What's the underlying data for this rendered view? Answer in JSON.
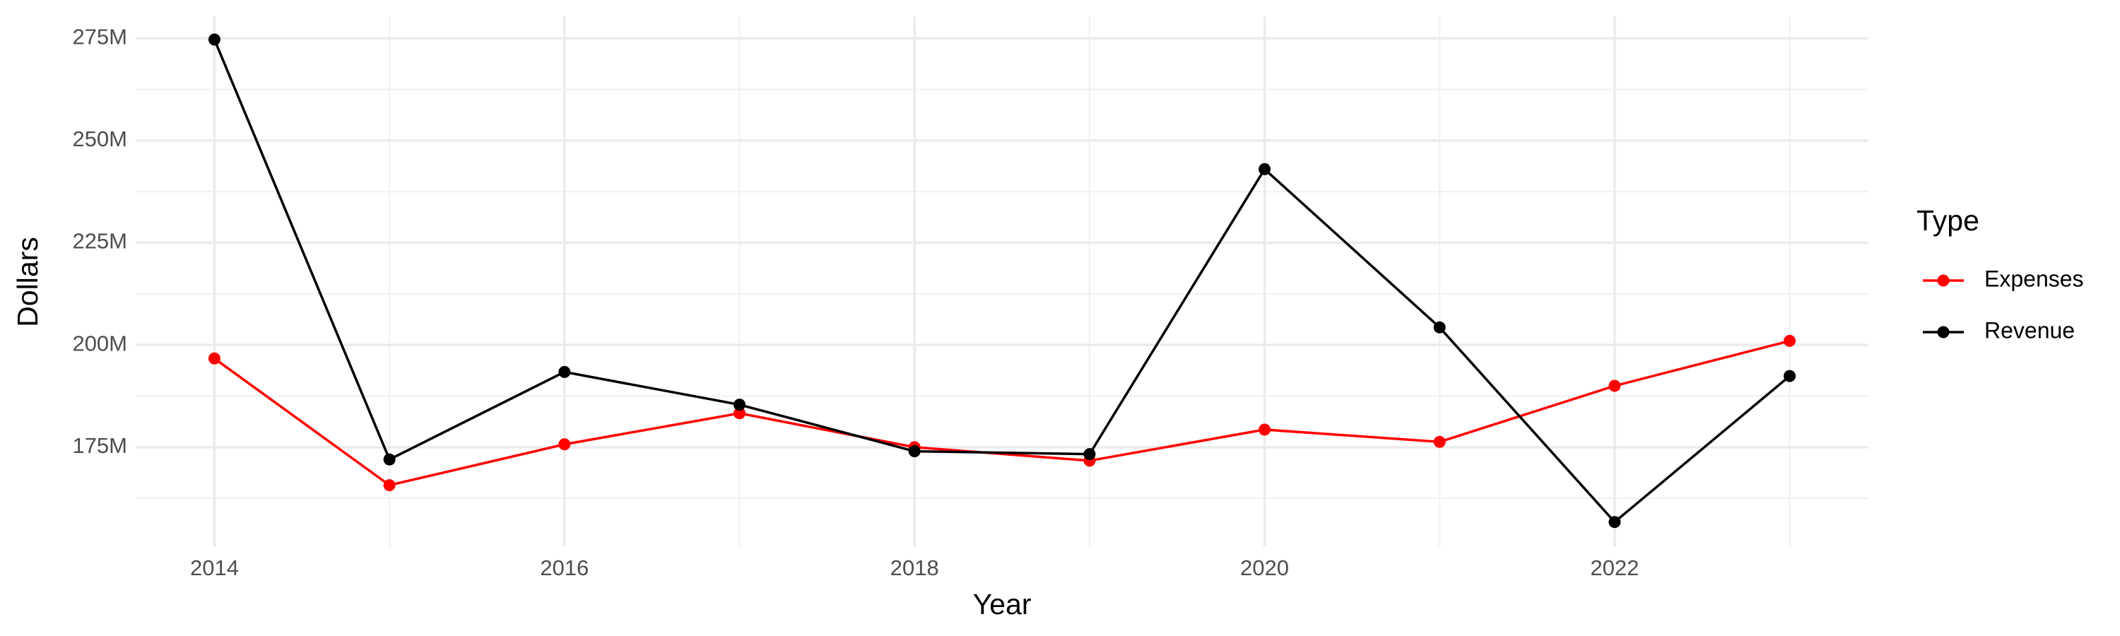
{
  "chart_data": {
    "type": "line",
    "x_label": "Year",
    "y_label": "Dollars",
    "legend_title": "Type",
    "legend": "right",
    "grid": true,
    "x": [
      2014,
      2015,
      2016,
      2017,
      2018,
      2019,
      2020,
      2021,
      2022,
      2023
    ],
    "series": [
      {
        "name": "Expenses",
        "color": "#ff0000",
        "values": [
          196700000,
          165700000,
          175700000,
          183300000,
          175000000,
          171700000,
          179300000,
          176300000,
          190000000,
          201000000
        ]
      },
      {
        "name": "Revenue",
        "color": "#000000",
        "values": [
          274700000,
          172000000,
          193400000,
          185400000,
          174000000,
          173300000,
          243000000,
          204300000,
          156700000,
          192400000
        ]
      }
    ],
    "xlim": [
      2013.55,
      2023.45
    ],
    "xticks": [
      2014,
      2016,
      2018,
      2020,
      2022
    ],
    "ylim": [
      150600000,
      280400000
    ],
    "yticks": [
      {
        "value": 175000000,
        "label": "175M"
      },
      {
        "value": 200000000,
        "label": "200M"
      },
      {
        "value": 225000000,
        "label": "225M"
      },
      {
        "value": 250000000,
        "label": "250M"
      },
      {
        "value": 275000000,
        "label": "275M"
      }
    ]
  }
}
